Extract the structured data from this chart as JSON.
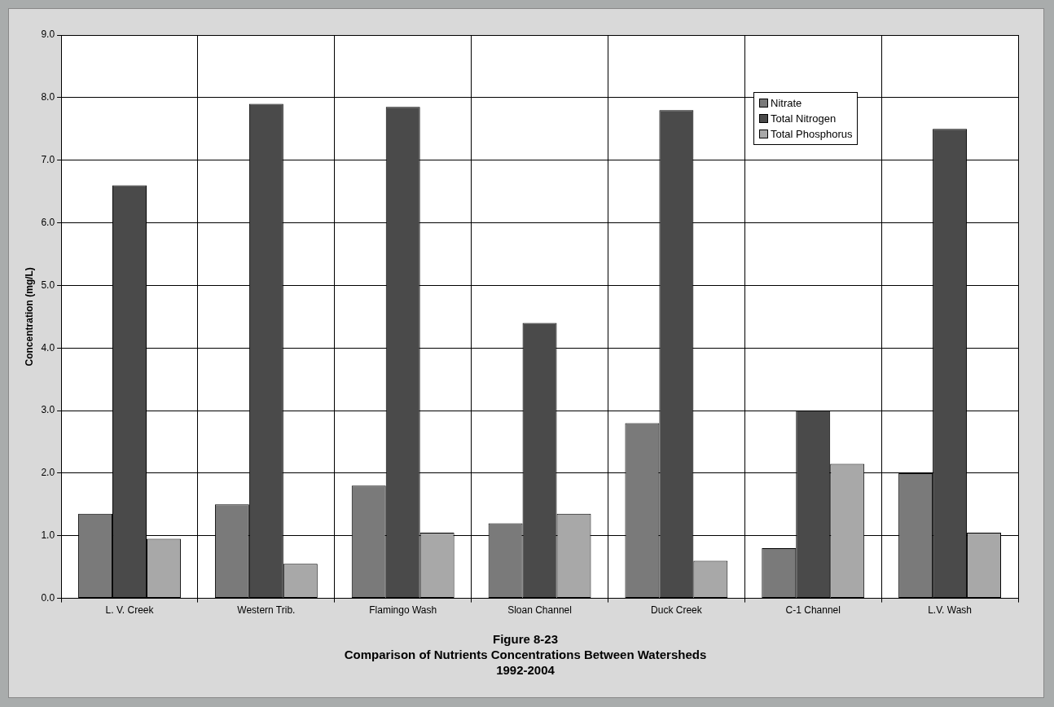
{
  "chart_data": {
    "type": "bar",
    "title": "Figure 8-23",
    "subtitle": "Comparison of Nutrients Concentrations Between Watersheds\n1992-2004",
    "ylabel": "Concentration (mg/L)",
    "categories": [
      "L. V. Creek",
      "Western Trib.",
      "Flamingo Wash",
      "Sloan Channel",
      "Duck Creek",
      "C-1 Channel",
      "L.V. Wash"
    ],
    "series": [
      {
        "name": "Nitrate",
        "color": "#7a7a7a",
        "values": [
          1.35,
          1.5,
          1.8,
          1.2,
          2.8,
          0.8,
          2.0
        ]
      },
      {
        "name": "Total Nitrogen",
        "color": "#4a4a4a",
        "values": [
          6.6,
          7.9,
          7.85,
          4.4,
          7.8,
          3.0,
          7.5
        ]
      },
      {
        "name": "Total Phosphorus",
        "color": "#a8a8a8",
        "values": [
          0.95,
          0.55,
          1.05,
          1.35,
          0.6,
          2.15,
          1.05
        ]
      }
    ],
    "ylim": [
      0,
      9
    ],
    "yticks": [
      {
        "value": 0,
        "label": "0.0"
      },
      {
        "value": 1,
        "label": "1.0"
      },
      {
        "value": 2,
        "label": "2.0"
      },
      {
        "value": 3,
        "label": "3.0"
      },
      {
        "value": 4,
        "label": "4.0"
      },
      {
        "value": 5,
        "label": "5.0"
      },
      {
        "value": 6,
        "label": "6.0"
      },
      {
        "value": 7,
        "label": "7.0"
      },
      {
        "value": 8,
        "label": "8.0"
      },
      {
        "value": 9,
        "label": "9.0"
      }
    ],
    "grid": true,
    "legend": "top right"
  }
}
